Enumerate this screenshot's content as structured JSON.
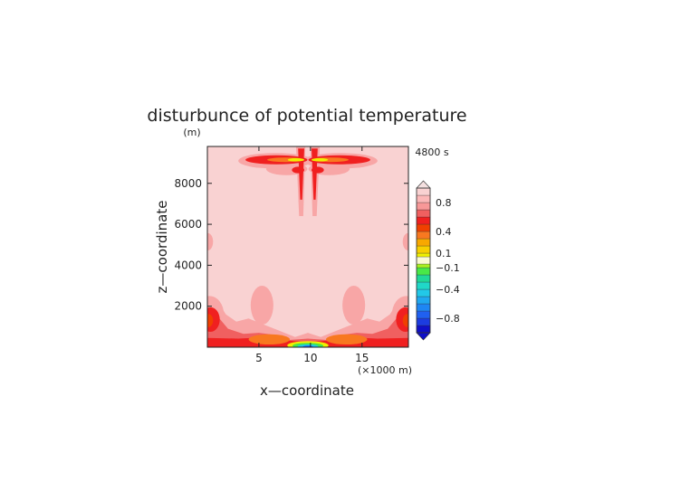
{
  "chart_data": {
    "type": "heatmap",
    "title": "disturbunce of potential temperature",
    "time_label": "4800 s",
    "xlabel": "x—coordinate",
    "x_unit": "(×1000 m)",
    "ylabel": "z—coordinate",
    "y_unit": "(m)",
    "xlim": [
      0,
      19.5
    ],
    "ylim": [
      0,
      9800
    ],
    "x_ticks": [
      5,
      10,
      15
    ],
    "y_ticks": [
      2000,
      4000,
      6000,
      8000
    ],
    "colorbar": {
      "labels": [
        "0.8",
        "0.4",
        "0.1",
        "−0.1",
        "−0.4",
        "−0.8"
      ],
      "label_values": [
        0.8,
        0.4,
        0.1,
        -0.1,
        -0.4,
        -0.8
      ],
      "levels": [
        -1.0,
        -0.9,
        -0.8,
        -0.7,
        -0.6,
        -0.5,
        -0.4,
        -0.3,
        -0.2,
        -0.1,
        -0.05,
        0.05,
        0.1,
        0.2,
        0.3,
        0.4,
        0.5,
        0.6,
        0.7,
        0.8,
        0.9,
        1.0
      ],
      "colors": [
        "#1010c8",
        "#1c3ce0",
        "#2060f0",
        "#1e86f4",
        "#20a8f0",
        "#22c8e8",
        "#20d8c8",
        "#20d898",
        "#48e848",
        "#a8f020",
        "#fafad2",
        "#f0f000",
        "#f8d000",
        "#f8a800",
        "#f87820",
        "#f04000",
        "#f02020",
        "#f06060",
        "#f89898",
        "#fcb8b8",
        "#f9d2d2"
      ],
      "extend": "both"
    }
  }
}
